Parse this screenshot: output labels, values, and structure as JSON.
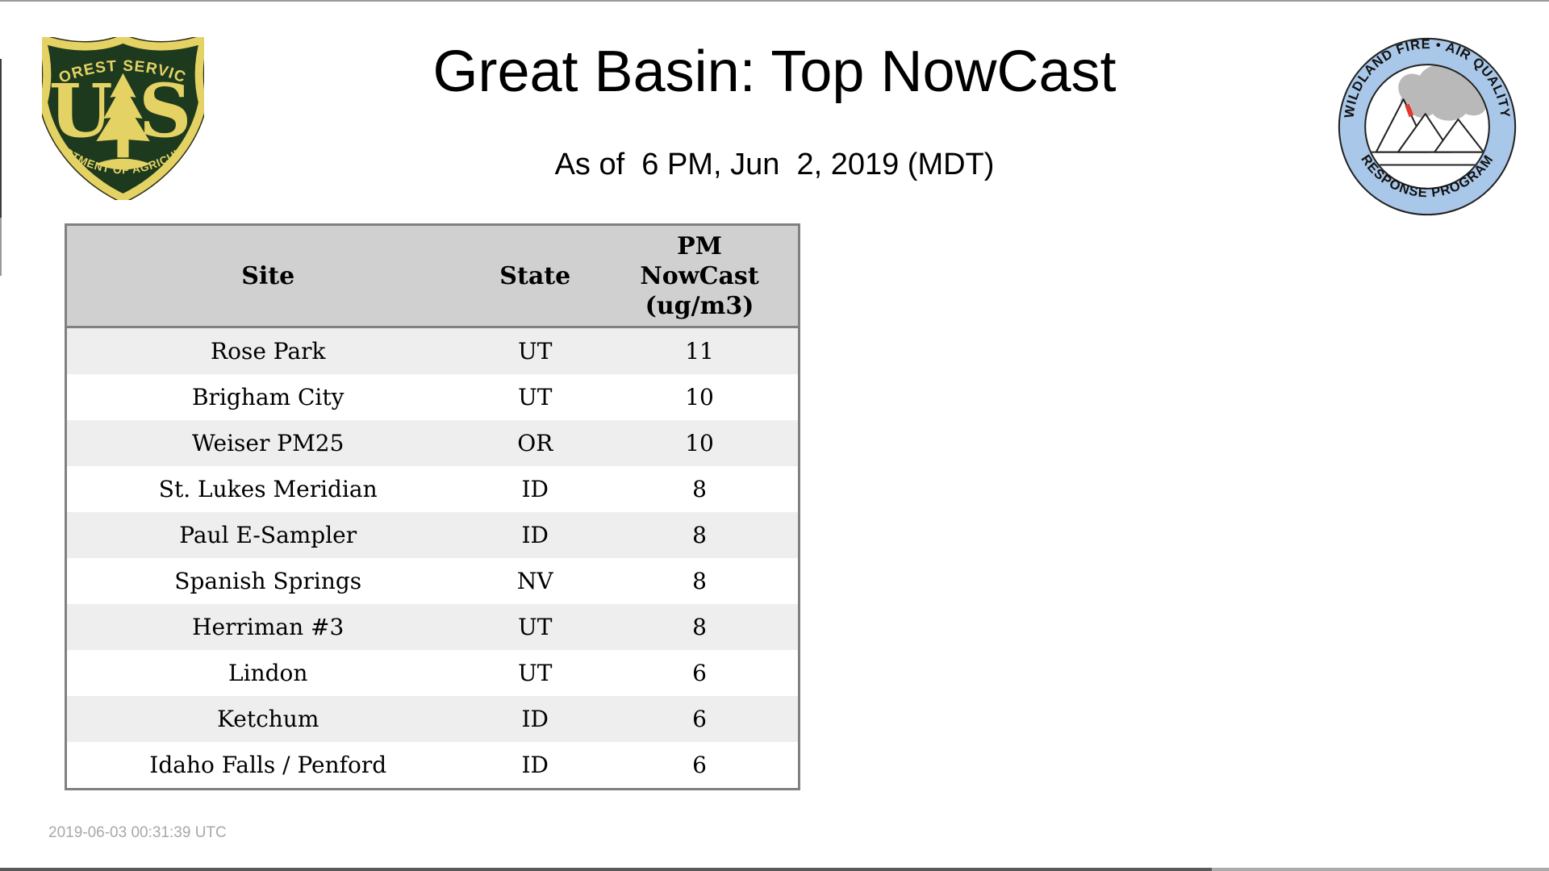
{
  "page": {
    "title": "Great Basin: Top NowCast",
    "subtitle": "As of  6 PM, Jun  2, 2019 (MDT)",
    "generated_utc": "2019-06-03 00:31:39 UTC"
  },
  "logos": {
    "forest_service": {
      "arc_top": "FOREST SERVICE",
      "arc_bottom": "DEPARTMENT OF AGRICULTURE",
      "letter_left": "U",
      "letter_right": "S",
      "colors": {
        "shield_green": "#1e3a1e",
        "gold": "#e5d265"
      }
    },
    "wfaqrp": {
      "arc_top": "WILDLAND FIRE • AIR QUALITY",
      "arc_bottom": "RESPONSE PROGRAM",
      "colors": {
        "ring_blue": "#a9c7e8",
        "smoke_gray": "#b9b9b9",
        "flame_red": "#e0392e"
      }
    }
  },
  "table": {
    "header": {
      "site": "Site",
      "state": "State",
      "pm_lines": [
        "PM",
        "NowCast",
        "(ug/m3)"
      ]
    },
    "colors": {
      "header_bg": "#d0d0d0",
      "stripe_bg": "#eeeeee",
      "border": "#808080"
    }
  },
  "chart_data": {
    "type": "table",
    "title": "Great Basin: Top NowCast",
    "columns": [
      "Site",
      "State",
      "PM NowCast (ug/m3)"
    ],
    "rows": [
      {
        "site": "Rose Park",
        "state": "UT",
        "nowcast": 11
      },
      {
        "site": "Brigham City",
        "state": "UT",
        "nowcast": 10
      },
      {
        "site": "Weiser PM25",
        "state": "OR",
        "nowcast": 10
      },
      {
        "site": "St. Lukes Meridian",
        "state": "ID",
        "nowcast": 8
      },
      {
        "site": "Paul E-Sampler",
        "state": "ID",
        "nowcast": 8
      },
      {
        "site": "Spanish Springs",
        "state": "NV",
        "nowcast": 8
      },
      {
        "site": "Herriman #3",
        "state": "UT",
        "nowcast": 8
      },
      {
        "site": "Lindon",
        "state": "UT",
        "nowcast": 6
      },
      {
        "site": "Ketchum",
        "state": "ID",
        "nowcast": 6
      },
      {
        "site": "Idaho Falls / Penford",
        "state": "ID",
        "nowcast": 6
      }
    ]
  }
}
